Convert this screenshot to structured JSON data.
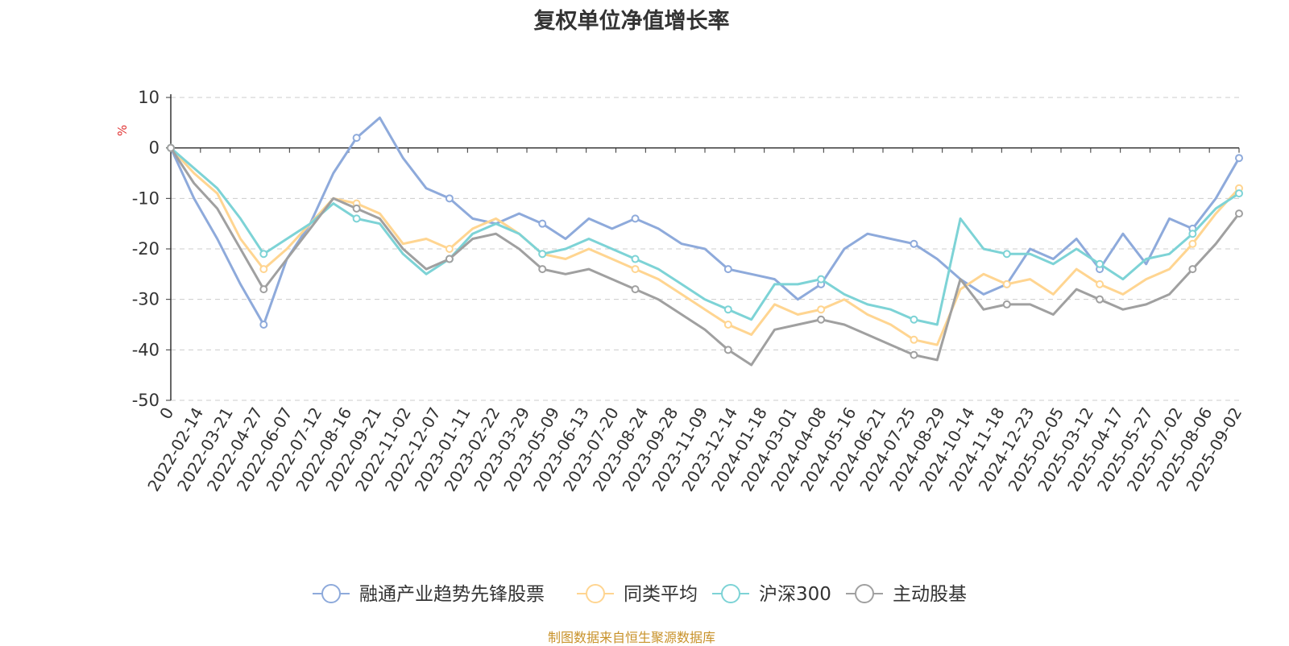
{
  "chart_data": {
    "type": "line",
    "title": "复权单位净值增长率",
    "ylabel": "%",
    "ylim": [
      -50,
      10
    ],
    "yticks": [
      10,
      0,
      -10,
      -20,
      -30,
      -40,
      -50
    ],
    "grid": true,
    "legend_position": "bottom",
    "x_tick_labels": [
      "0",
      "2022-02-14",
      "2022-03-21",
      "2022-04-27",
      "2022-06-07",
      "2022-07-12",
      "2022-08-16",
      "2022-09-21",
      "2022-11-02",
      "2022-12-07",
      "2023-01-11",
      "2023-02-22",
      "2023-03-29",
      "2023-05-09",
      "2023-06-13",
      "2023-07-20",
      "2023-08-24",
      "2023-09-28",
      "2023-11-09",
      "2023-12-14",
      "2024-01-18",
      "2024-03-01",
      "2024-04-08",
      "2024-05-16",
      "2024-06-21",
      "2024-07-25",
      "2024-08-29",
      "2024-10-14",
      "2024-11-18",
      "2024-12-23",
      "2025-02-05",
      "2025-03-12",
      "2025-04-17",
      "2025-05-27",
      "2025-07-02",
      "2025-08-06",
      "2025-09-02"
    ],
    "series": [
      {
        "name": "融通产业趋势先锋股票",
        "color": "#8eaadb",
        "values": [
          0,
          -10,
          -18,
          -27,
          -35,
          -22,
          -15,
          -5,
          2,
          6,
          -2,
          -8,
          -10,
          -14,
          -15,
          -13,
          -15,
          -18,
          -14,
          -16,
          -14,
          -16,
          -19,
          -20,
          -24,
          -25,
          -26,
          -30,
          -27,
          -20,
          -17,
          -18,
          -19,
          -22,
          -26,
          -29,
          -27,
          -20,
          -22,
          -18,
          -24,
          -17,
          -23,
          -14,
          -16,
          -10,
          -2
        ]
      },
      {
        "name": "同类平均",
        "color": "#ffd591",
        "values": [
          0,
          -5,
          -9,
          -18,
          -24,
          -20,
          -15,
          -10,
          -11,
          -13,
          -19,
          -18,
          -20,
          -16,
          -14,
          -17,
          -21,
          -22,
          -20,
          -22,
          -24,
          -26,
          -29,
          -32,
          -35,
          -37,
          -31,
          -33,
          -32,
          -30,
          -33,
          -35,
          -38,
          -39,
          -28,
          -25,
          -27,
          -26,
          -29,
          -24,
          -27,
          -29,
          -26,
          -24,
          -19,
          -13,
          -8
        ]
      },
      {
        "name": "沪深300",
        "color": "#7dd3d6",
        "values": [
          0,
          -4,
          -8,
          -14,
          -21,
          -18,
          -15,
          -11,
          -14,
          -15,
          -21,
          -25,
          -22,
          -17,
          -15,
          -17,
          -21,
          -20,
          -18,
          -20,
          -22,
          -24,
          -27,
          -30,
          -32,
          -34,
          -27,
          -27,
          -26,
          -29,
          -31,
          -32,
          -34,
          -35,
          -14,
          -20,
          -21,
          -21,
          -23,
          -20,
          -23,
          -26,
          -22,
          -21,
          -17,
          -12,
          -9
        ]
      },
      {
        "name": "主动股基",
        "color": "#a0a0a0",
        "values": [
          0,
          -7,
          -12,
          -20,
          -28,
          -22,
          -16,
          -10,
          -12,
          -14,
          -20,
          -24,
          -22,
          -18,
          -17,
          -20,
          -24,
          -25,
          -24,
          -26,
          -28,
          -30,
          -33,
          -36,
          -40,
          -43,
          -36,
          -35,
          -34,
          -35,
          -37,
          -39,
          -41,
          -42,
          -26,
          -32,
          -31,
          -31,
          -33,
          -28,
          -30,
          -32,
          -31,
          -29,
          -24,
          -19,
          -13
        ]
      }
    ]
  },
  "source_note": "制图数据来自恒生聚源数据库"
}
